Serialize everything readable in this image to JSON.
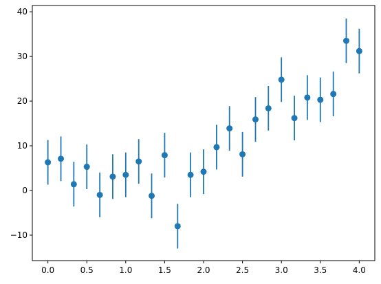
{
  "chart_data": {
    "type": "errorbar",
    "x": [
      0,
      0.167,
      0.333,
      0.5,
      0.667,
      0.833,
      1.0,
      1.167,
      1.333,
      1.5,
      1.667,
      1.833,
      2.0,
      2.167,
      2.333,
      2.5,
      2.667,
      2.833,
      3.0,
      3.167,
      3.333,
      3.5,
      3.667,
      3.833,
      4.0
    ],
    "values": [
      6.3,
      7.1,
      1.4,
      5.3,
      -1.0,
      3.1,
      3.5,
      6.5,
      -1.2,
      7.9,
      -8.0,
      3.5,
      4.2,
      9.7,
      13.9,
      8.1,
      15.9,
      18.4,
      24.8,
      16.2,
      20.8,
      20.3,
      21.6,
      33.5,
      31.2
    ],
    "yerr": [
      5,
      5,
      5,
      5,
      5,
      5,
      5,
      5,
      5,
      5,
      5,
      5,
      5,
      5,
      5,
      5,
      5,
      5,
      5,
      5,
      5,
      5,
      5,
      5,
      5
    ],
    "color": "#1f77b4",
    "xlim": [
      -0.2,
      4.2
    ],
    "xticks": [
      {
        "value": 0,
        "label": "0.0"
      },
      {
        "value": 0.5,
        "label": "0.5"
      },
      {
        "value": 1,
        "label": "1.0"
      },
      {
        "value": 1.5,
        "label": "1.5"
      },
      {
        "value": 2,
        "label": "2.0"
      },
      {
        "value": 2.5,
        "label": "2.5"
      },
      {
        "value": 3,
        "label": "3.0"
      },
      {
        "value": 3.5,
        "label": "3.5"
      },
      {
        "value": 4,
        "label": "4.0"
      }
    ],
    "ylim": [
      -15.7,
      41.4
    ],
    "yticks": [
      {
        "value": -10,
        "label": "−10"
      },
      0,
      10,
      20,
      30,
      40
    ]
  }
}
